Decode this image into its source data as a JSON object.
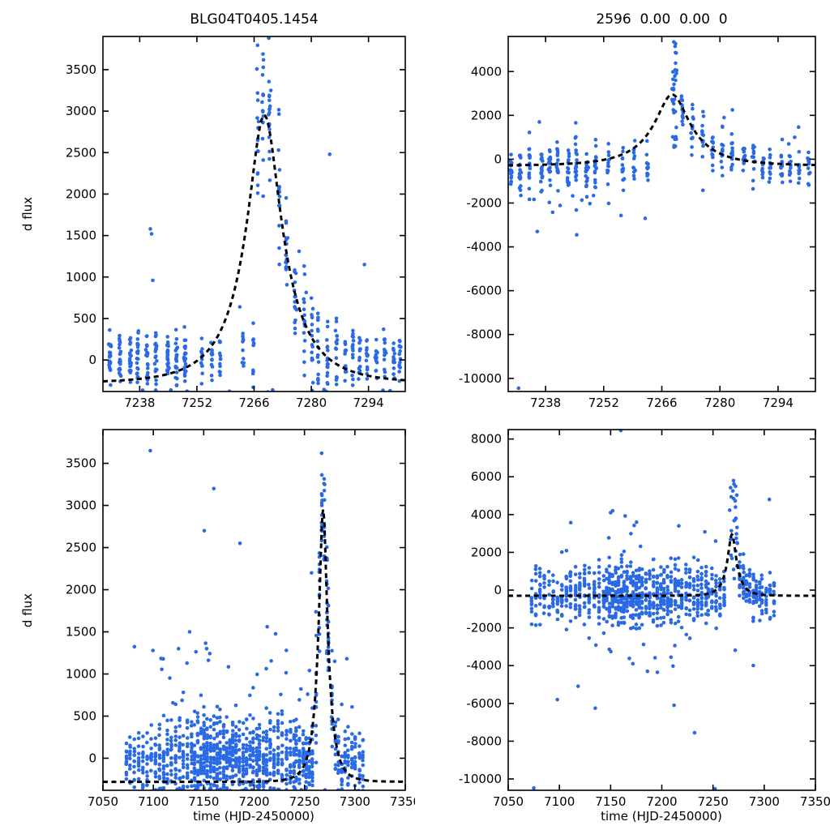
{
  "figure": {
    "background": "#ffffff",
    "axis_color": "#000000"
  },
  "chart_data": {
    "type": "scatter",
    "point_color": "#2a6ae4",
    "model_color": "#000000",
    "panels": [
      {
        "id": "top-left",
        "title": "BLG04T0405.1454",
        "ylabel": "d flux",
        "xlabel": "",
        "xlim": [
          7229,
          7303
        ],
        "ylim": [
          -380,
          3900
        ],
        "xticks": [
          7238,
          7252,
          7266,
          7280,
          7294
        ],
        "yticks": [
          0,
          500,
          1000,
          1500,
          2000,
          2500,
          3000,
          3500
        ],
        "model": {
          "t0": 7268.5,
          "tE": 13,
          "u0": 0.32,
          "baseline": -280,
          "peak": 2950
        },
        "seed": 101,
        "clusters": [
          {
            "t0": 7231,
            "t1": 7249,
            "nights": 9,
            "per": 22,
            "mean": 30,
            "sd": 170
          },
          {
            "t0": 7253,
            "t1": 7258,
            "nights": 3,
            "per": 12,
            "mean": 40,
            "sd": 150
          },
          {
            "t0": 7263,
            "t1": 7265.5,
            "nights": 2,
            "per": 10,
            "mean": 150,
            "sd": 180
          },
          {
            "t0": 7266.5,
            "t1": 7272,
            "nights": 4,
            "per": 15,
            "follow": true,
            "sd": 450
          },
          {
            "t0": 7274,
            "t1": 7286,
            "nights": 7,
            "per": 16,
            "follow": true,
            "sd": 300
          },
          {
            "t0": 7288,
            "t1": 7302,
            "nights": 8,
            "per": 14,
            "mean": 20,
            "sd": 160
          },
          {
            "dist": "uniform",
            "t0": 7233,
            "t1": 7300,
            "n": 15,
            "ymin": -420,
            "ymax": -355
          }
        ],
        "extra_points": [
          [
            7240.6,
            1580
          ],
          [
            7240.9,
            1520
          ],
          [
            7241.2,
            960
          ],
          [
            7269.6,
            3880
          ],
          [
            7270.1,
            3250
          ],
          [
            7269.9,
            3060
          ],
          [
            7284.5,
            2480
          ],
          [
            7293,
            1150
          ],
          [
            7277,
            1310
          ],
          [
            7262.5,
            640
          ]
        ]
      },
      {
        "id": "top-right",
        "title": "2596  0.00  0.00  0",
        "ylabel": "",
        "xlabel": "",
        "xlim": [
          7229,
          7303
        ],
        "ylim": [
          -10600,
          5600
        ],
        "xticks": [
          7238,
          7252,
          7266,
          7280,
          7294
        ],
        "yticks": [
          -10000,
          -8000,
          -6000,
          -4000,
          -2000,
          0,
          2000,
          4000
        ],
        "model": {
          "t0": 7268.5,
          "tE": 13,
          "u0": 0.32,
          "baseline": -300,
          "peak": 2950
        },
        "seed": 202,
        "clusters": [
          {
            "t0": 7230,
            "t1": 7250,
            "nights": 10,
            "per": 18,
            "mean": -350,
            "sd": 650
          },
          {
            "t0": 7253,
            "t1": 7263,
            "nights": 4,
            "per": 12,
            "mean": -250,
            "sd": 550
          },
          {
            "dist": "uniform",
            "t0": 7268.3,
            "t1": 7269.6,
            "n": 30,
            "ymin": 500,
            "ymax": 5300
          },
          {
            "t0": 7271,
            "t1": 7288,
            "nights": 8,
            "per": 13,
            "follow": true,
            "sd": 600
          },
          {
            "t0": 7290,
            "t1": 7304,
            "nights": 7,
            "per": 12,
            "mean": -300,
            "sd": 420
          },
          {
            "dist": "uniform",
            "t0": 7231,
            "t1": 7260,
            "n": 10,
            "ymin": -2600,
            "ymax": -1400
          }
        ],
        "extra_points": [
          [
            7231.5,
            -10450
          ],
          [
            7236,
            -3300
          ],
          [
            7245.5,
            -3450
          ],
          [
            7262,
            -2700
          ],
          [
            7268.9,
            5350
          ],
          [
            7269.2,
            5150
          ],
          [
            7283,
            2250
          ],
          [
            7281,
            1900
          ],
          [
            7236.5,
            1700
          ],
          [
            7295,
            900
          ],
          [
            7298,
            1000
          ]
        ]
      },
      {
        "id": "bottom-left",
        "title": "",
        "ylabel": "d flux",
        "xlabel": "time (HJD-2450000)",
        "xlim": [
          7050,
          7350
        ],
        "ylim": [
          -380,
          3900
        ],
        "xticks": [
          7050,
          7100,
          7150,
          7200,
          7250,
          7300,
          7350
        ],
        "yticks": [
          0,
          500,
          1000,
          1500,
          2000,
          2500,
          3000,
          3500
        ],
        "model": {
          "t0": 7268.5,
          "tE": 13,
          "u0": 0.32,
          "baseline": -280,
          "peak": 2950
        },
        "seed": 303,
        "clusters": [
          {
            "t0": 7073,
            "t1": 7098,
            "nights": 7,
            "per": 12,
            "mean": -50,
            "sd": 200
          },
          {
            "t0": 7102,
            "t1": 7138,
            "nights": 10,
            "per": 18,
            "mean": -40,
            "sd": 230
          },
          {
            "t0": 7141,
            "t1": 7176,
            "nights": 12,
            "per": 24,
            "mean": -20,
            "sd": 255
          },
          {
            "t0": 7179,
            "t1": 7209,
            "nights": 10,
            "per": 22,
            "mean": -30,
            "sd": 245
          },
          {
            "t0": 7212,
            "t1": 7240,
            "nights": 8,
            "per": 18,
            "mean": -20,
            "sd": 235
          },
          {
            "t0": 7242,
            "t1": 7258,
            "nights": 6,
            "per": 20,
            "mean": 10,
            "sd": 220
          },
          {
            "t0": 7262,
            "t1": 7272,
            "nights": 5,
            "per": 12,
            "follow": true,
            "sd": 420
          },
          {
            "t0": 7274,
            "t1": 7290,
            "nights": 6,
            "per": 14,
            "follow": true,
            "sd": 280
          },
          {
            "t0": 7293,
            "t1": 7308,
            "nights": 5,
            "per": 12,
            "mean": -40,
            "sd": 200
          },
          {
            "dist": "uniform",
            "t0": 7080,
            "t1": 7260,
            "n": 26,
            "ymin": 650,
            "ymax": 1500
          },
          {
            "dist": "uniform",
            "t0": 7085,
            "t1": 7305,
            "n": 55,
            "ymin": -430,
            "ymax": -355
          }
        ],
        "extra_points": [
          [
            7097,
            3650
          ],
          [
            7160,
            3200
          ],
          [
            7150.5,
            2700
          ],
          [
            7186,
            2550
          ],
          [
            7257,
            2200
          ],
          [
            7270,
            3250
          ],
          [
            7267.5,
            3060
          ],
          [
            7213,
            1560
          ],
          [
            7136,
            1500
          ],
          [
            7125,
            1300
          ],
          [
            7232,
            1280
          ],
          [
            7292,
            1180
          ],
          [
            7280,
            1150
          ]
        ]
      },
      {
        "id": "bottom-right",
        "title": "",
        "ylabel": "",
        "xlabel": "time (HJD-2450000)",
        "xlim": [
          7050,
          7350
        ],
        "ylim": [
          -10600,
          8500
        ],
        "xticks": [
          7050,
          7100,
          7150,
          7200,
          7250,
          7300,
          7350
        ],
        "yticks": [
          -10000,
          -8000,
          -6000,
          -4000,
          -2000,
          0,
          2000,
          4000,
          6000,
          8000
        ],
        "model": {
          "t0": 7268.5,
          "tE": 13,
          "u0": 0.32,
          "baseline": -300,
          "peak": 2950
        },
        "seed": 404,
        "clusters": [
          {
            "t0": 7073,
            "t1": 7098,
            "nights": 7,
            "per": 11,
            "mean": -350,
            "sd": 750
          },
          {
            "t0": 7102,
            "t1": 7143,
            "nights": 10,
            "per": 15,
            "mean": -300,
            "sd": 780
          },
          {
            "t0": 7146,
            "t1": 7178,
            "nights": 12,
            "per": 20,
            "mean": -250,
            "sd": 850
          },
          {
            "t0": 7181,
            "t1": 7213,
            "nights": 10,
            "per": 18,
            "mean": -300,
            "sd": 820
          },
          {
            "t0": 7216,
            "t1": 7243,
            "nights": 8,
            "per": 15,
            "mean": -350,
            "sd": 850
          },
          {
            "t0": 7245,
            "t1": 7261,
            "nights": 5,
            "per": 13,
            "mean": -300,
            "sd": 650
          },
          {
            "dist": "uniform",
            "t0": 7266,
            "t1": 7274,
            "n": 26,
            "ymin": 300,
            "ymax": 5800
          },
          {
            "t0": 7276,
            "t1": 7296,
            "nights": 7,
            "per": 13,
            "follow": true,
            "sd": 650
          },
          {
            "t0": 7298,
            "t1": 7310,
            "nights": 4,
            "per": 10,
            "mean": -400,
            "sd": 800
          },
          {
            "dist": "uniform",
            "t0": 7080,
            "t1": 7300,
            "n": 12,
            "ymin": -5200,
            "ymax": -2600
          },
          {
            "dist": "uniform",
            "t0": 7100,
            "t1": 7260,
            "n": 10,
            "ymin": 1500,
            "ymax": 4200
          }
        ],
        "extra_points": [
          [
            7160,
            8450
          ],
          [
            7075,
            -10480
          ],
          [
            7252,
            -10520
          ],
          [
            7135,
            -6250
          ],
          [
            7212,
            -6100
          ],
          [
            7232,
            -7550
          ],
          [
            7305,
            4800
          ],
          [
            7270,
            5800
          ],
          [
            7272,
            5500
          ],
          [
            7152,
            4200
          ],
          [
            7150,
            4100
          ],
          [
            7186,
            -4300
          ],
          [
            7098,
            -5800
          ]
        ]
      }
    ]
  }
}
